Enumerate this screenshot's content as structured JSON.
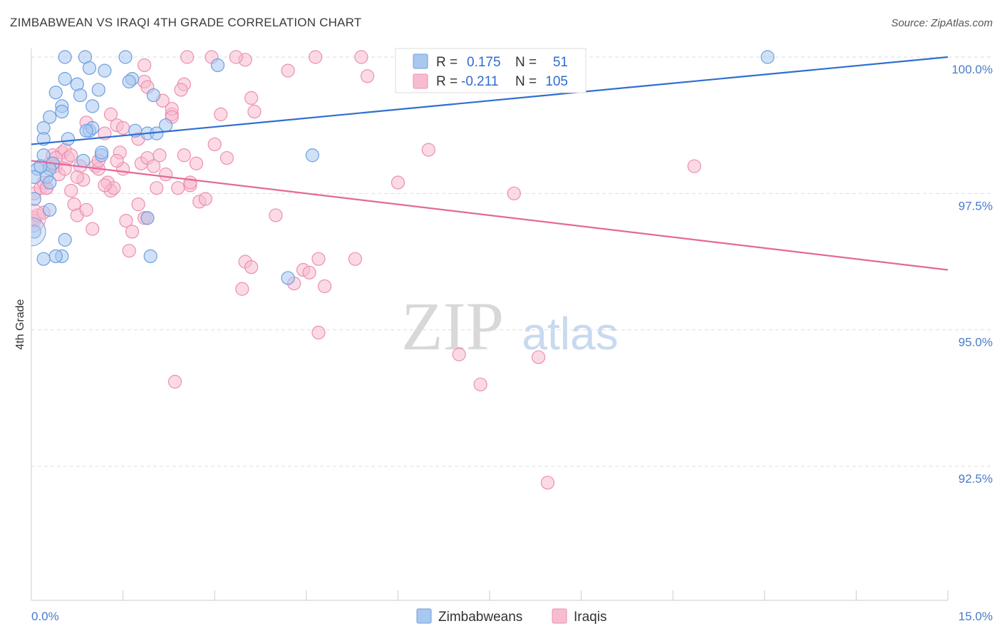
{
  "title": "ZIMBABWEAN VS IRAQI 4TH GRADE CORRELATION CHART",
  "source": "Source: ZipAtlas.com",
  "watermark": {
    "zip": "ZIP",
    "atlas": "atlas"
  },
  "colors": {
    "blue_fill": "#a9c8f0",
    "blue_stroke": "#6d9ee0",
    "blue_line": "#2f6fd0",
    "pink_fill": "#f8bcd0",
    "pink_stroke": "#eb8fb0",
    "pink_line": "#e46898",
    "grid": "#dddddd",
    "tick_text": "#4a7cc9"
  },
  "legend": {
    "r_label": "R =",
    "n_label": "N =",
    "zimbabweans": {
      "r": "0.175",
      "n": "51"
    },
    "iraqis": {
      "r": "-0.211",
      "n": "105"
    }
  },
  "bottom_legend": {
    "zimbabweans": "Zimbabweans",
    "iraqis": "Iraqis"
  },
  "chart_data": {
    "type": "scatter",
    "title": "ZIMBABWEAN VS IRAQI 4TH GRADE CORRELATION CHART",
    "xlabel": "",
    "ylabel": "4th Grade",
    "xlim": [
      0,
      15
    ],
    "ylim": [
      90.3,
      100.5
    ],
    "x_tick_labels": [
      "0.0%",
      "15.0%"
    ],
    "y_ticks": [
      92.5,
      95.0,
      97.5,
      100.0
    ],
    "y_tick_labels": [
      "92.5%",
      "95.0%",
      "97.5%",
      "100.0%"
    ],
    "grid": true,
    "series": [
      {
        "name": "Zimbabweans",
        "color": "blue",
        "r": 0.175,
        "n": 51,
        "trend": {
          "x": [
            0,
            15
          ],
          "y": [
            98.4,
            100.0
          ]
        },
        "points": [
          [
            0.55,
            100.0
          ],
          [
            0.88,
            100.0
          ],
          [
            1.54,
            100.0
          ],
          [
            12.05,
            100.0
          ],
          [
            0.95,
            99.8
          ],
          [
            1.2,
            99.75
          ],
          [
            1.65,
            99.6
          ],
          [
            0.55,
            99.6
          ],
          [
            0.75,
            99.5
          ],
          [
            1.1,
            99.4
          ],
          [
            0.4,
            99.35
          ],
          [
            0.8,
            99.3
          ],
          [
            0.5,
            99.1
          ],
          [
            1.0,
            99.1
          ],
          [
            2.0,
            99.3
          ],
          [
            0.5,
            99.0
          ],
          [
            0.3,
            98.9
          ],
          [
            0.2,
            98.7
          ],
          [
            0.95,
            98.65
          ],
          [
            1.7,
            98.65
          ],
          [
            1.9,
            98.6
          ],
          [
            0.6,
            98.5
          ],
          [
            0.2,
            98.5
          ],
          [
            0.2,
            98.2
          ],
          [
            4.6,
            98.2
          ],
          [
            1.15,
            98.2
          ],
          [
            2.2,
            98.75
          ],
          [
            3.05,
            99.85
          ],
          [
            0.35,
            98.05
          ],
          [
            0.3,
            97.95
          ],
          [
            0.25,
            97.8
          ],
          [
            0.1,
            97.95
          ],
          [
            0.3,
            97.7
          ],
          [
            0.05,
            97.8
          ],
          [
            0.3,
            97.2
          ],
          [
            0.05,
            97.4
          ],
          [
            1.9,
            97.05
          ],
          [
            0.55,
            96.65
          ],
          [
            0.5,
            96.35
          ],
          [
            0.4,
            96.35
          ],
          [
            0.2,
            96.3
          ],
          [
            1.95,
            96.35
          ],
          [
            4.2,
            95.95
          ],
          [
            0.05,
            96.8
          ],
          [
            1.0,
            98.7
          ],
          [
            0.85,
            98.1
          ],
          [
            0.15,
            98.0
          ],
          [
            1.6,
            99.55
          ],
          [
            0.9,
            98.65
          ],
          [
            2.05,
            98.6
          ],
          [
            1.15,
            98.25
          ]
        ]
      },
      {
        "name": "Iraqis",
        "color": "pink",
        "r": -0.211,
        "n": 105,
        "trend": {
          "x": [
            0,
            15
          ],
          "y": [
            98.1,
            96.1
          ]
        },
        "points": [
          [
            0.05,
            97.5
          ],
          [
            0.05,
            97.05
          ],
          [
            0.05,
            97.0
          ],
          [
            0.1,
            97.1
          ],
          [
            0.15,
            97.6
          ],
          [
            0.2,
            97.7
          ],
          [
            0.25,
            97.6
          ],
          [
            0.3,
            98.05
          ],
          [
            0.35,
            98.2
          ],
          [
            0.4,
            98.0
          ],
          [
            0.45,
            97.85
          ],
          [
            0.5,
            98.25
          ],
          [
            0.55,
            98.3
          ],
          [
            0.6,
            98.15
          ],
          [
            0.65,
            97.55
          ],
          [
            0.7,
            97.3
          ],
          [
            0.75,
            97.1
          ],
          [
            0.8,
            98.0
          ],
          [
            0.85,
            97.75
          ],
          [
            0.9,
            97.2
          ],
          [
            1.0,
            96.85
          ],
          [
            1.05,
            98.0
          ],
          [
            1.1,
            97.95
          ],
          [
            1.2,
            98.6
          ],
          [
            1.25,
            97.7
          ],
          [
            1.3,
            97.55
          ],
          [
            1.35,
            97.6
          ],
          [
            1.45,
            98.25
          ],
          [
            1.5,
            97.95
          ],
          [
            1.55,
            97.0
          ],
          [
            1.6,
            96.45
          ],
          [
            1.65,
            96.8
          ],
          [
            1.75,
            97.3
          ],
          [
            1.8,
            98.05
          ],
          [
            1.85,
            97.05
          ],
          [
            1.9,
            98.15
          ],
          [
            2.0,
            98.0
          ],
          [
            2.05,
            97.6
          ],
          [
            2.1,
            98.2
          ],
          [
            2.2,
            97.85
          ],
          [
            2.3,
            98.95
          ],
          [
            2.4,
            97.6
          ],
          [
            2.5,
            98.2
          ],
          [
            2.6,
            97.65
          ],
          [
            2.7,
            98.05
          ],
          [
            2.75,
            97.35
          ],
          [
            2.85,
            97.4
          ],
          [
            3.0,
            98.4
          ],
          [
            3.1,
            98.95
          ],
          [
            3.2,
            98.15
          ],
          [
            3.5,
            99.95
          ],
          [
            3.6,
            99.25
          ],
          [
            3.65,
            99.0
          ],
          [
            3.5,
            96.25
          ],
          [
            3.6,
            96.15
          ],
          [
            3.45,
            95.75
          ],
          [
            4.0,
            97.1
          ],
          [
            4.2,
            99.75
          ],
          [
            4.3,
            95.85
          ],
          [
            4.45,
            96.1
          ],
          [
            4.55,
            96.05
          ],
          [
            4.7,
            96.3
          ],
          [
            4.8,
            95.8
          ],
          [
            4.7,
            94.95
          ],
          [
            5.3,
            96.3
          ],
          [
            5.5,
            99.65
          ],
          [
            6.0,
            97.7
          ],
          [
            6.5,
            98.3
          ],
          [
            7.0,
            94.55
          ],
          [
            7.35,
            94.0
          ],
          [
            7.9,
            97.5
          ],
          [
            8.3,
            94.5
          ],
          [
            8.45,
            92.2
          ],
          [
            10.85,
            98.0
          ],
          [
            2.5,
            99.5
          ],
          [
            2.95,
            100.0
          ],
          [
            2.55,
            100.0
          ],
          [
            3.35,
            100.0
          ],
          [
            4.65,
            100.0
          ],
          [
            5.4,
            100.0
          ],
          [
            7.75,
            100.0
          ],
          [
            1.85,
            99.85
          ],
          [
            1.85,
            99.55
          ],
          [
            1.4,
            98.75
          ],
          [
            2.3,
            99.05
          ],
          [
            2.3,
            98.9
          ],
          [
            0.4,
            98.15
          ],
          [
            0.55,
            97.95
          ],
          [
            1.1,
            98.1
          ],
          [
            1.4,
            98.1
          ],
          [
            0.9,
            98.8
          ],
          [
            1.75,
            98.5
          ],
          [
            0.25,
            97.6
          ],
          [
            0.65,
            98.2
          ],
          [
            0.2,
            97.15
          ],
          [
            1.2,
            97.65
          ],
          [
            2.35,
            94.05
          ],
          [
            1.9,
            97.05
          ],
          [
            1.5,
            98.7
          ],
          [
            2.45,
            99.4
          ],
          [
            2.6,
            97.7
          ],
          [
            0.75,
            97.8
          ],
          [
            1.3,
            98.95
          ],
          [
            2.15,
            99.2
          ],
          [
            1.9,
            99.45
          ]
        ]
      }
    ]
  }
}
